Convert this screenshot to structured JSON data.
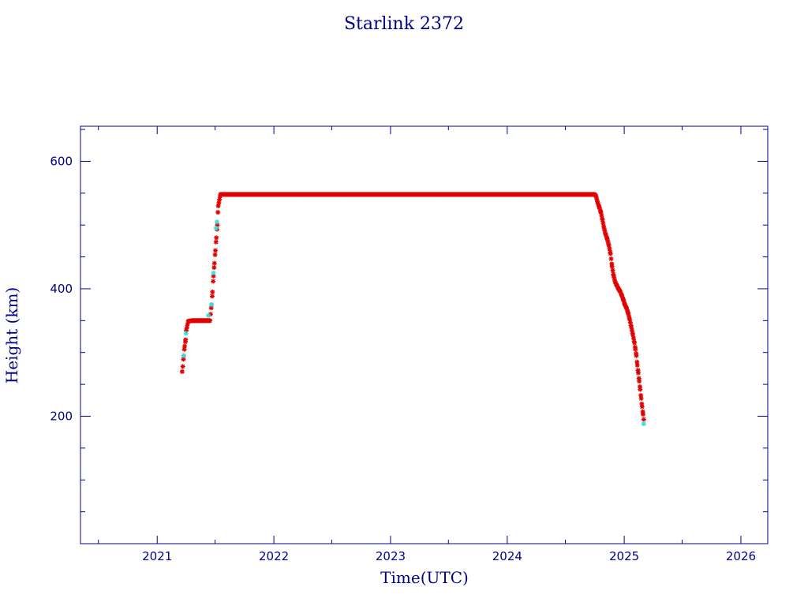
{
  "chart_data": {
    "type": "scatter",
    "title": "Starlink 2372",
    "xlabel": "Time(UTC)",
    "ylabel": "Height (km)",
    "xlim": [
      "2020-05-06",
      "2026-03-26"
    ],
    "ylim": [
      0,
      655
    ],
    "x_ticks_major": [
      "2021",
      "2022",
      "2023",
      "2024",
      "2025",
      "2026"
    ],
    "y_ticks_major": [
      200,
      400,
      600
    ],
    "grid": false,
    "legend": "none",
    "colors": {
      "frame": "#00008b",
      "primary_points": "#e00000",
      "secondary_points": "#33e0e0"
    },
    "series": [
      {
        "color": "#e00000",
        "x": [
          "2021-03-20",
          "2021-03-22",
          "2021-03-25",
          "2021-03-28",
          "2021-03-31",
          "2021-04-02",
          "2021-04-08",
          "2021-04-20",
          "2021-05-05",
          "2021-05-20",
          "2021-06-05",
          "2021-06-10",
          "2021-06-15",
          "2021-06-17",
          "2021-06-20",
          "2021-06-23",
          "2021-06-26",
          "2021-06-29",
          "2021-07-02",
          "2021-07-05",
          "2021-07-08",
          "2021-07-11",
          "2021-07-18",
          "2021-08-01",
          "2021-09-01",
          "2021-10-01",
          "2021-11-01",
          "2021-12-01",
          "2022-01-01",
          "2022-02-01",
          "2022-03-01",
          "2022-04-01",
          "2022-05-01",
          "2022-06-01",
          "2022-07-01",
          "2022-08-01",
          "2022-09-01",
          "2022-10-01",
          "2022-11-01",
          "2022-12-01",
          "2023-01-01",
          "2023-02-01",
          "2023-03-01",
          "2023-04-01",
          "2023-05-01",
          "2023-06-01",
          "2023-07-01",
          "2023-08-01",
          "2023-09-01",
          "2023-10-01",
          "2023-11-01",
          "2023-12-01",
          "2024-01-01",
          "2024-02-01",
          "2024-03-01",
          "2024-04-01",
          "2024-05-01",
          "2024-06-01",
          "2024-07-01",
          "2024-08-01",
          "2024-09-01",
          "2024-10-01",
          "2024-10-05",
          "2024-10-10",
          "2024-10-15",
          "2024-10-20",
          "2024-10-25",
          "2024-10-30",
          "2024-11-04",
          "2024-11-09",
          "2024-11-14",
          "2024-11-19",
          "2024-11-24",
          "2024-11-29",
          "2024-12-04",
          "2024-12-09",
          "2024-12-14",
          "2024-12-19",
          "2024-12-24",
          "2024-12-29",
          "2025-01-03",
          "2025-01-08",
          "2025-01-13",
          "2025-01-18",
          "2025-01-23",
          "2025-01-28",
          "2025-02-02",
          "2025-02-05",
          "2025-02-08",
          "2025-02-11",
          "2025-02-14",
          "2025-02-17",
          "2025-02-20",
          "2025-02-23",
          "2025-02-26",
          "2025-03-01",
          "2025-03-03"
        ],
        "y": [
          270,
          278,
          295,
          310,
          320,
          335,
          349,
          350,
          350,
          350,
          350,
          350,
          350,
          360,
          375,
          395,
          420,
          440,
          460,
          480,
          500,
          530,
          548,
          548,
          548,
          548,
          548,
          548,
          548,
          548,
          548,
          548,
          548,
          548,
          548,
          548,
          548,
          548,
          548,
          548,
          548,
          548,
          548,
          548,
          548,
          548,
          548,
          548,
          548,
          548,
          548,
          548,
          548,
          548,
          548,
          548,
          548,
          548,
          548,
          548,
          548,
          548,
          545,
          535,
          528,
          520,
          508,
          495,
          485,
          478,
          468,
          455,
          435,
          420,
          410,
          405,
          400,
          396,
          390,
          383,
          375,
          370,
          362,
          352,
          340,
          328,
          315,
          305,
          295,
          280,
          268,
          255,
          242,
          228,
          215,
          203,
          195
        ]
      },
      {
        "color": "#33e0e0",
        "x": [
          "2021-03-25",
          "2021-04-01",
          "2021-06-10",
          "2021-06-20",
          "2021-06-26",
          "2021-07-04",
          "2021-07-07",
          "2025-03-03"
        ],
        "y": [
          295,
          330,
          358,
          375,
          425,
          495,
          505,
          188
        ]
      }
    ]
  }
}
